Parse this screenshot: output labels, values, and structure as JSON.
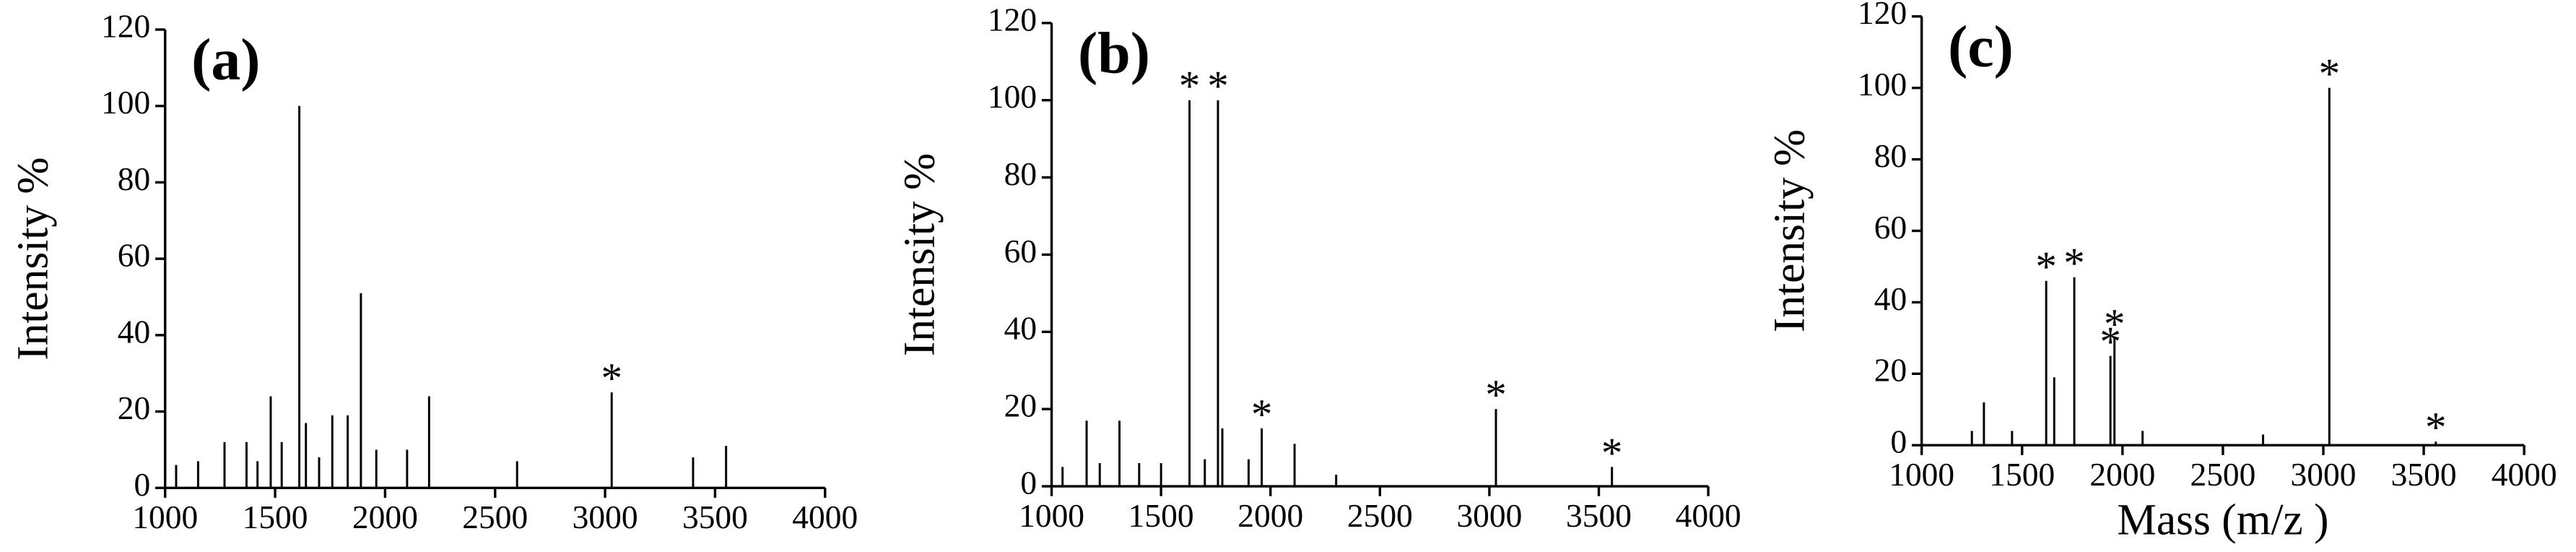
{
  "chart_data": [
    {
      "type": "stem",
      "label": "(a)",
      "ylabel": "Intensity %",
      "color": "#000000",
      "x": [
        1050,
        1150,
        1270,
        1370,
        1420,
        1480,
        1530,
        1610,
        1640,
        1700,
        1760,
        1830,
        1890,
        1960,
        2100,
        2200,
        2600,
        3030,
        3400,
        3550
      ],
      "values": [
        6,
        7,
        12,
        12,
        7,
        24,
        12,
        100,
        17,
        8,
        19,
        19,
        51,
        10,
        10,
        24,
        7,
        25,
        8,
        11
      ],
      "annotations": [
        {
          "text": "*",
          "x": 3030
        }
      ],
      "xlim": [
        1000,
        4000
      ],
      "xticks": [
        1000,
        1500,
        2000,
        2500,
        3000,
        3500,
        4000
      ],
      "ylim": [
        0,
        120
      ],
      "yticks": [
        0,
        20,
        40,
        60,
        80,
        100,
        120
      ]
    },
    {
      "type": "stem",
      "label": "(b)",
      "ylabel": "Intensity %",
      "color": "#000000",
      "x": [
        1050,
        1160,
        1220,
        1310,
        1400,
        1500,
        1630,
        1700,
        1760,
        1780,
        1900,
        1960,
        2110,
        2300,
        3030,
        3560
      ],
      "values": [
        5,
        17,
        6,
        17,
        6,
        6,
        100,
        7,
        100,
        15,
        7,
        15,
        11,
        3,
        20,
        5
      ],
      "annotations": [
        {
          "text": "*",
          "x": 1630
        },
        {
          "text": "*",
          "x": 1760
        },
        {
          "text": "*",
          "x": 1960
        },
        {
          "text": "*",
          "x": 3030
        },
        {
          "text": "*",
          "x": 3560
        }
      ],
      "xlim": [
        1000,
        4000
      ],
      "xticks": [
        1000,
        1500,
        2000,
        2500,
        3000,
        3500,
        4000
      ],
      "ylim": [
        0,
        120
      ],
      "yticks": [
        0,
        20,
        40,
        60,
        80,
        100,
        120
      ]
    },
    {
      "type": "stem",
      "label": "(c)",
      "ylabel": "Intensity %",
      "xlabel": "Mass (m/z )",
      "color": "#000000",
      "x": [
        1250,
        1310,
        1450,
        1620,
        1660,
        1760,
        1940,
        1960,
        2100,
        2700,
        3030,
        3560
      ],
      "values": [
        4,
        12,
        4,
        46,
        19,
        47,
        25,
        30,
        4,
        3,
        100,
        1
      ],
      "annotations": [
        {
          "text": "*",
          "x": 1620
        },
        {
          "text": "*",
          "x": 1760
        },
        {
          "text": "*",
          "x": 1940
        },
        {
          "text": "*",
          "x": 1960
        },
        {
          "text": "*",
          "x": 3030
        },
        {
          "text": "*",
          "x": 3560
        }
      ],
      "xlim": [
        1000,
        4000
      ],
      "xticks": [
        1000,
        1500,
        2000,
        2500,
        3000,
        3500,
        4000
      ],
      "ylim": [
        0,
        120
      ],
      "yticks": [
        0,
        20,
        40,
        60,
        80,
        100,
        120
      ]
    }
  ]
}
